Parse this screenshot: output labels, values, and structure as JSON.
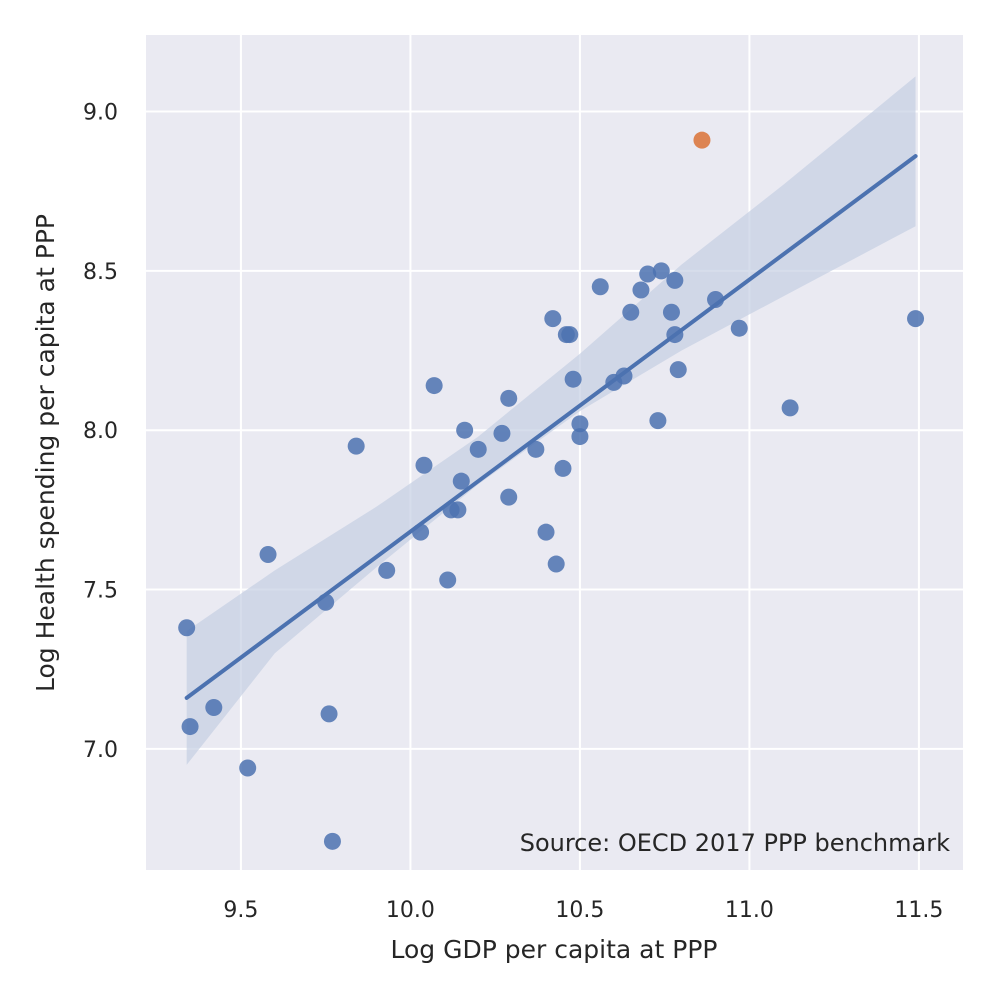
{
  "chart_data": {
    "type": "scatter",
    "title": "",
    "xlabel": "Log GDP per capita at PPP",
    "ylabel": "Log Health spending per capita at PPP",
    "xlim": [
      9.22,
      11.63
    ],
    "ylim": [
      6.62,
      9.24
    ],
    "xticks": [
      9.5,
      10.0,
      10.5,
      11.0,
      11.5
    ],
    "yticks": [
      7.0,
      7.5,
      8.0,
      8.5,
      9.0
    ],
    "grid": true,
    "legend": "none",
    "annotation": "Source: OECD 2017 PPP benchmark",
    "colors": {
      "background": "#eaeaf2",
      "grid": "#ffffff",
      "points": "#4c72b0",
      "highlight": "#dd8452",
      "fit_line": "#4c72b0",
      "confidence_band": "#c5cee3"
    },
    "points": [
      {
        "x": 9.34,
        "y": 7.38
      },
      {
        "x": 9.35,
        "y": 7.07
      },
      {
        "x": 9.42,
        "y": 7.13
      },
      {
        "x": 9.52,
        "y": 6.94
      },
      {
        "x": 9.58,
        "y": 7.61
      },
      {
        "x": 9.75,
        "y": 7.46
      },
      {
        "x": 9.76,
        "y": 7.11
      },
      {
        "x": 9.77,
        "y": 6.71
      },
      {
        "x": 9.84,
        "y": 7.95
      },
      {
        "x": 9.93,
        "y": 7.56
      },
      {
        "x": 10.03,
        "y": 7.68
      },
      {
        "x": 10.04,
        "y": 7.89
      },
      {
        "x": 10.07,
        "y": 8.14
      },
      {
        "x": 10.11,
        "y": 7.53
      },
      {
        "x": 10.12,
        "y": 7.75
      },
      {
        "x": 10.14,
        "y": 7.75
      },
      {
        "x": 10.15,
        "y": 7.84
      },
      {
        "x": 10.16,
        "y": 8.0
      },
      {
        "x": 10.2,
        "y": 7.94
      },
      {
        "x": 10.27,
        "y": 7.99
      },
      {
        "x": 10.29,
        "y": 8.1
      },
      {
        "x": 10.29,
        "y": 7.79
      },
      {
        "x": 10.37,
        "y": 7.94
      },
      {
        "x": 10.4,
        "y": 7.68
      },
      {
        "x": 10.42,
        "y": 8.35
      },
      {
        "x": 10.43,
        "y": 7.58
      },
      {
        "x": 10.45,
        "y": 7.88
      },
      {
        "x": 10.46,
        "y": 8.3
      },
      {
        "x": 10.47,
        "y": 8.3
      },
      {
        "x": 10.48,
        "y": 8.16
      },
      {
        "x": 10.5,
        "y": 8.02
      },
      {
        "x": 10.5,
        "y": 7.98
      },
      {
        "x": 10.56,
        "y": 8.45
      },
      {
        "x": 10.6,
        "y": 8.15
      },
      {
        "x": 10.63,
        "y": 8.17
      },
      {
        "x": 10.65,
        "y": 8.37
      },
      {
        "x": 10.68,
        "y": 8.44
      },
      {
        "x": 10.7,
        "y": 8.49
      },
      {
        "x": 10.73,
        "y": 8.03
      },
      {
        "x": 10.74,
        "y": 8.5
      },
      {
        "x": 10.77,
        "y": 8.37
      },
      {
        "x": 10.78,
        "y": 8.47
      },
      {
        "x": 10.78,
        "y": 8.3
      },
      {
        "x": 10.79,
        "y": 8.19
      },
      {
        "x": 10.9,
        "y": 8.41
      },
      {
        "x": 10.97,
        "y": 8.32
      },
      {
        "x": 11.12,
        "y": 8.07
      },
      {
        "x": 11.49,
        "y": 8.35
      }
    ],
    "highlight_points": [
      {
        "x": 10.86,
        "y": 8.91
      }
    ],
    "fit_line": {
      "x": [
        9.34,
        11.49
      ],
      "y": [
        7.16,
        8.86
      ]
    },
    "confidence_band": {
      "x": [
        9.34,
        9.6,
        9.9,
        10.2,
        10.5,
        10.8,
        11.1,
        11.49
      ],
      "lower": [
        6.95,
        7.3,
        7.57,
        7.83,
        8.06,
        8.25,
        8.42,
        8.64
      ],
      "upper": [
        7.37,
        7.56,
        7.76,
        7.98,
        8.24,
        8.52,
        8.77,
        9.11
      ]
    }
  }
}
